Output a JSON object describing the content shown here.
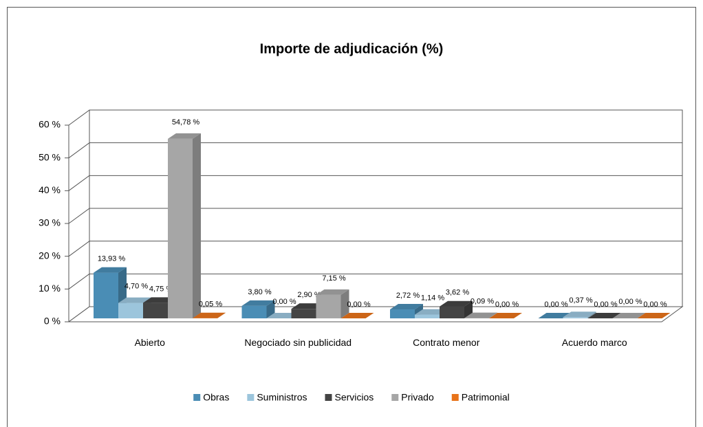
{
  "chart_data": {
    "type": "bar3d",
    "title": "Importe de adjudicación (%)",
    "categories": [
      "Abierto",
      "Negociado sin publicidad",
      "Contrato menor",
      "Acuerdo marco"
    ],
    "series": [
      {
        "name": "Obras",
        "color": "#4a8db5",
        "values": [
          13.93,
          3.8,
          2.72,
          0.0
        ],
        "value_labels": [
          "13,93 %",
          "3,80 %",
          "2,72 %",
          "0,00 %"
        ]
      },
      {
        "name": "Suministros",
        "color": "#9cc5dc",
        "values": [
          4.7,
          0.0,
          1.14,
          0.37
        ],
        "value_labels": [
          "4,70 %",
          "0,00 %",
          "1,14 %",
          "0,37 %"
        ]
      },
      {
        "name": "Servicios",
        "color": "#444444",
        "values": [
          4.75,
          2.9,
          3.62,
          0.0
        ],
        "value_labels": [
          "4,75 %",
          "2,90 %",
          "3,62 %",
          "0,00 %"
        ]
      },
      {
        "name": "Privado",
        "color": "#a6a6a6",
        "values": [
          54.78,
          7.15,
          0.09,
          0.0
        ],
        "value_labels": [
          "54,78 %",
          "7,15 %",
          "0,09 %",
          "0,00 %"
        ]
      },
      {
        "name": "Patrimonial",
        "color": "#e8731a",
        "values": [
          0.05,
          0.0,
          0.0,
          0.0
        ],
        "value_labels": [
          "0,05 %",
          "0,00 %",
          "0,00 %",
          "0,00 %"
        ]
      }
    ],
    "ylim": [
      0,
      60
    ],
    "yticks": [
      {
        "value": 0,
        "label": "0 %"
      },
      {
        "value": 10,
        "label": "10 %"
      },
      {
        "value": 20,
        "label": "20 %"
      },
      {
        "value": 30,
        "label": "30 %"
      },
      {
        "value": 40,
        "label": "40 %"
      },
      {
        "value": 50,
        "label": "50 %"
      },
      {
        "value": 60,
        "label": "60 %"
      }
    ],
    "grid": true,
    "legend": "bottom"
  }
}
